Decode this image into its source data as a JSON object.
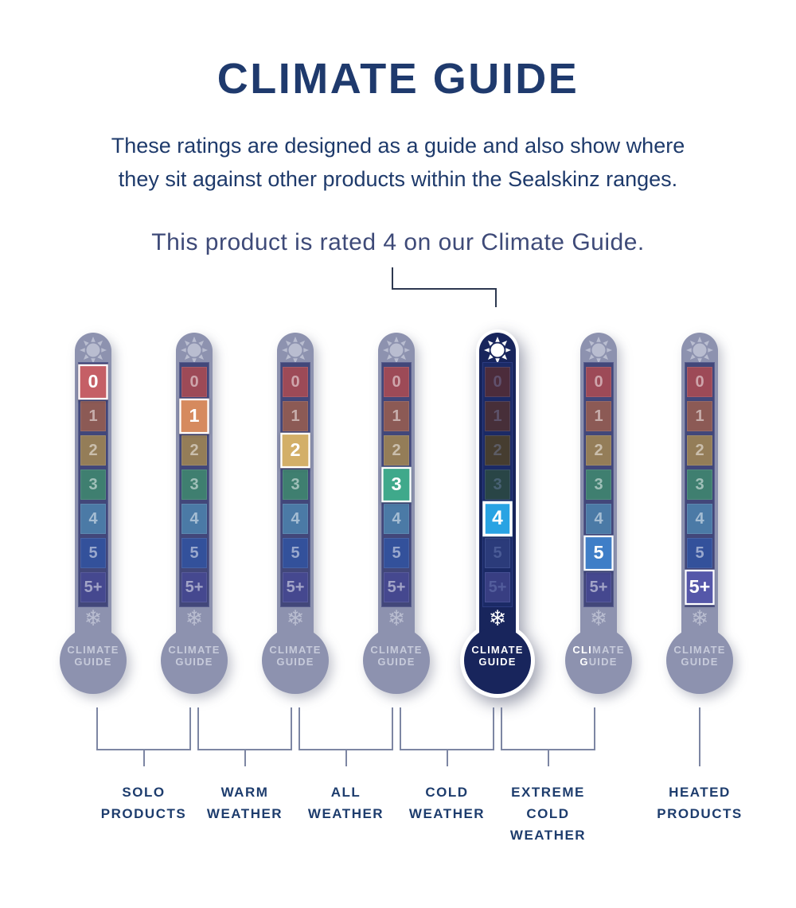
{
  "header": {
    "title": "CLIMATE GUIDE",
    "subtitle_lines": [
      "These ratings are designed as a guide and also show where",
      "they sit against other products within the Sealskinz ranges."
    ],
    "rating_note": "This product is rated 4 on our Climate Guide."
  },
  "climate_scale": {
    "levels": [
      "0",
      "1",
      "2",
      "3",
      "4",
      "5",
      "5+"
    ],
    "level_colors_bright": [
      "#c55f66",
      "#d68a5e",
      "#d3af68",
      "#3fa98b",
      "#29a3e3",
      "#3f7ec7",
      "#5557a9"
    ],
    "level_colors_muted": [
      "#9d4a57",
      "#8c5a55",
      "#947d58",
      "#3f7f70",
      "#4b7aa6",
      "#33519b",
      "#45488f"
    ],
    "level_colors_dark": [
      "#4c2c3b",
      "#472f39",
      "#463d30",
      "#294546",
      "#29a3e3",
      "#2b3b7a",
      "#383e82"
    ]
  },
  "bulb": {
    "line1": "CLIMATE",
    "line2": "GUIDE"
  },
  "icon_glyphs": {
    "snowflake": "❄"
  },
  "thermometers": [
    {
      "name": "thermometer-1",
      "selected_level": "0",
      "active": false
    },
    {
      "name": "thermometer-2",
      "selected_level": "1",
      "active": false
    },
    {
      "name": "thermometer-3",
      "selected_level": "2",
      "active": false
    },
    {
      "name": "thermometer-4",
      "selected_level": "3",
      "active": false
    },
    {
      "name": "thermometer-5",
      "selected_level": "4",
      "active": true
    },
    {
      "name": "thermometer-6",
      "selected_level": "5",
      "active": false,
      "bulb_text_split": {
        "line1_bright": "CLI",
        "line1_faded": "MATE",
        "line2_bright": "G",
        "line2_faded": "UIDE"
      }
    },
    {
      "name": "thermometer-7",
      "selected_level": "5+",
      "active": false
    }
  ],
  "groups": [
    {
      "name": "solo-products",
      "label_lines": [
        "SOLO",
        "PRODUCTS"
      ],
      "connector": "bracket",
      "from_thermometer": 1,
      "to_thermometer": 2
    },
    {
      "name": "warm-weather",
      "label_lines": [
        "WARM",
        "WEATHER"
      ],
      "connector": "bracket",
      "from_thermometer": 2,
      "to_thermometer": 3
    },
    {
      "name": "all-weather",
      "label_lines": [
        "ALL",
        "WEATHER"
      ],
      "connector": "bracket",
      "from_thermometer": 3,
      "to_thermometer": 4
    },
    {
      "name": "cold-weather",
      "label_lines": [
        "COLD",
        "WEATHER"
      ],
      "connector": "bracket",
      "from_thermometer": 4,
      "to_thermometer": 5
    },
    {
      "name": "extreme-cold-weather",
      "label_lines": [
        "EXTREME",
        "COLD",
        "WEATHER"
      ],
      "connector": "bracket",
      "from_thermometer": 5,
      "to_thermometer": 6
    },
    {
      "name": "heated-products",
      "label_lines": [
        "HEATED",
        "PRODUCTS"
      ],
      "connector": "line",
      "at_thermometer": 7
    }
  ],
  "colors": {
    "title_text": "#1f3a6d",
    "body_text": "#1e3a6b",
    "note_text": "#3e4a78",
    "active_body": "#18255c",
    "faded_body": "#8d92af",
    "bracket_line": "#7d86a3",
    "connector_line": "#2d3850"
  }
}
